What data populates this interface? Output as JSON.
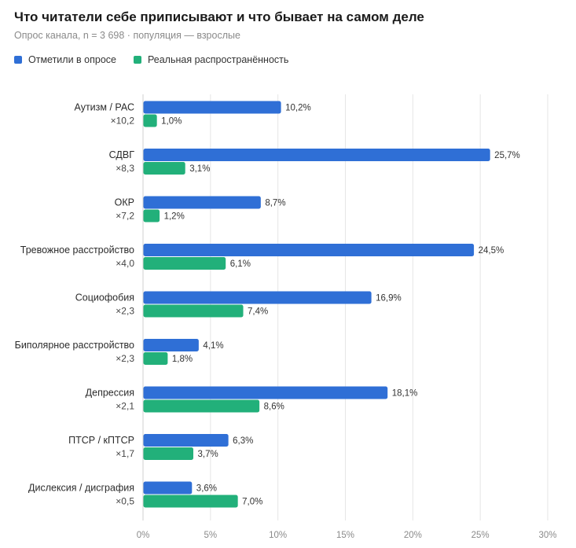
{
  "header": {
    "title": "Что читатели себе приписывают и что бывает на самом деле",
    "subtitle": "Опрос канала, n = 3 698 · популяция — взрослые"
  },
  "legend": [
    {
      "label": "Отметили в опросе",
      "color": "#2f6fd6"
    },
    {
      "label": "Реальная распространённость",
      "color": "#22b07a"
    }
  ],
  "chart_data": {
    "type": "bar",
    "orientation": "horizontal",
    "categories": [
      "Аутизм / РАС",
      "СДВГ",
      "ОКР",
      "Тревожное расстройство",
      "Социофобия",
      "Биполярное расстройство",
      "Депрессия",
      "ПТСР / кПТСР",
      "Дислексия / дисграфия"
    ],
    "ratios": [
      "×10,2",
      "×8,3",
      "×7,2",
      "×4,0",
      "×2,3",
      "×2,3",
      "×2,1",
      "×1,7",
      "×0,5"
    ],
    "series": [
      {
        "name": "Отметили в опросе",
        "color": "#2f6fd6",
        "values": [
          10.2,
          25.7,
          8.7,
          24.5,
          16.9,
          4.1,
          18.1,
          6.3,
          3.6
        ],
        "labels": [
          "10,2%",
          "25,7%",
          "8,7%",
          "24,5%",
          "16,9%",
          "4,1%",
          "18,1%",
          "6,3%",
          "3,6%"
        ]
      },
      {
        "name": "Реальная распространённость",
        "color": "#22b07a",
        "values": [
          1.0,
          3.1,
          1.2,
          6.1,
          7.4,
          1.8,
          8.6,
          3.7,
          7.0
        ],
        "labels": [
          "1,0%",
          "3,1%",
          "1,2%",
          "6,1%",
          "7,4%",
          "1,8%",
          "8,6%",
          "3,7%",
          "7,0%"
        ]
      }
    ],
    "xlim": [
      0,
      30
    ],
    "xticks": [
      0,
      5,
      10,
      15,
      20,
      25,
      30
    ],
    "xtick_labels": [
      "0%",
      "5%",
      "10%",
      "15%",
      "20%",
      "25%",
      "30%"
    ],
    "grid": "vertical",
    "legend_position": "top-left"
  }
}
